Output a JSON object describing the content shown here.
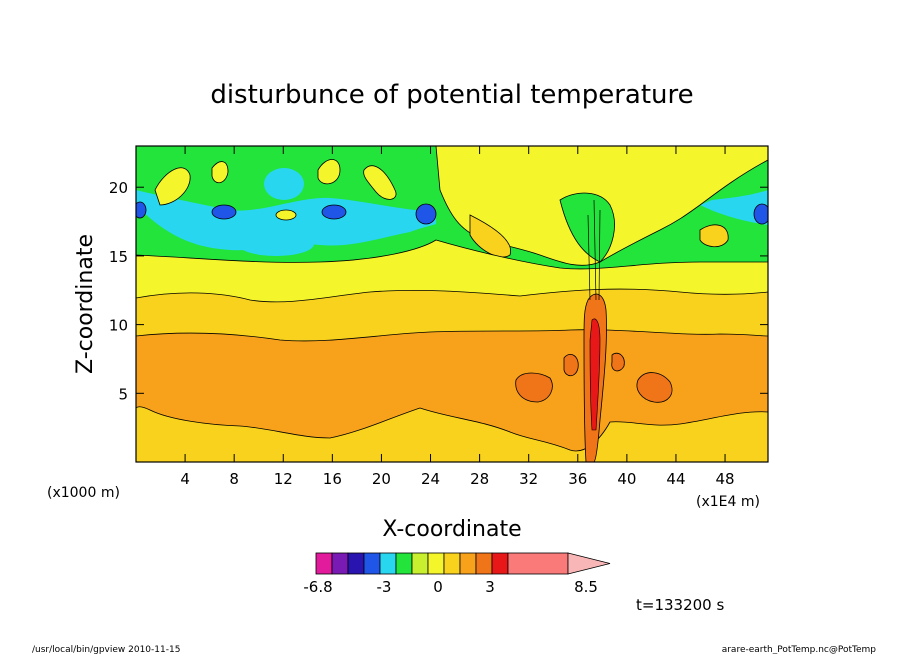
{
  "chart_data": {
    "type": "heatmap",
    "title": "disturbunce of potential temperature",
    "xlabel": "X-coordinate",
    "ylabel": "Z-coordinate",
    "x_unit": "(x1E4 m)",
    "y_unit": "(x1000 m)",
    "xlim": [
      0,
      51.5
    ],
    "ylim": [
      0,
      23
    ],
    "x_ticks": [
      "4",
      "8",
      "12",
      "16",
      "20",
      "24",
      "28",
      "32",
      "36",
      "40",
      "44",
      "48"
    ],
    "y_ticks": [
      "5",
      "10",
      "15",
      "20"
    ],
    "x_tick_values": [
      4,
      8,
      12,
      16,
      20,
      24,
      28,
      32,
      36,
      40,
      44,
      48
    ],
    "y_tick_values": [
      5,
      10,
      15,
      20
    ],
    "colorbar": {
      "colors": [
        "#e21b9c",
        "#7a1ab4",
        "#2a14b0",
        "#1f56e8",
        "#28d6f0",
        "#22e43a",
        "#c9f02e",
        "#f5f52c",
        "#f8d21c",
        "#f8a21c",
        "#f07418",
        "#e81818",
        "#fa7a7a",
        "#f8b6b6"
      ],
      "tick_labels": [
        "-6.8",
        "-3",
        "0",
        "3",
        "8.5"
      ],
      "levels": [
        -6.8,
        -6,
        -5,
        -4,
        -3,
        -2,
        -1,
        0,
        1,
        2,
        3,
        4,
        5,
        8.5
      ]
    },
    "bands": [
      {
        "from_z": 0,
        "to_z": 3.8,
        "color": "#f8d21c"
      },
      {
        "from_z": 3.8,
        "to_z": 9.5,
        "color": "#f8a21c"
      },
      {
        "from_z": 9.5,
        "to_z": 12.0,
        "color": "#f8d21c"
      },
      {
        "from_z": 12.0,
        "to_z": 15.0,
        "color": "#f5f52c"
      },
      {
        "from_z": 15.0,
        "to_z": 16.7,
        "color": "#22e43a"
      },
      {
        "from_z": 16.7,
        "to_z": 23,
        "color": "#22e43a"
      }
    ],
    "annotation": "t=133200 s"
  },
  "footer": {
    "left": "/usr/local/bin/gpview   2010-11-15",
    "right": "arare-earth_PotTemp.nc@PotTemp"
  }
}
